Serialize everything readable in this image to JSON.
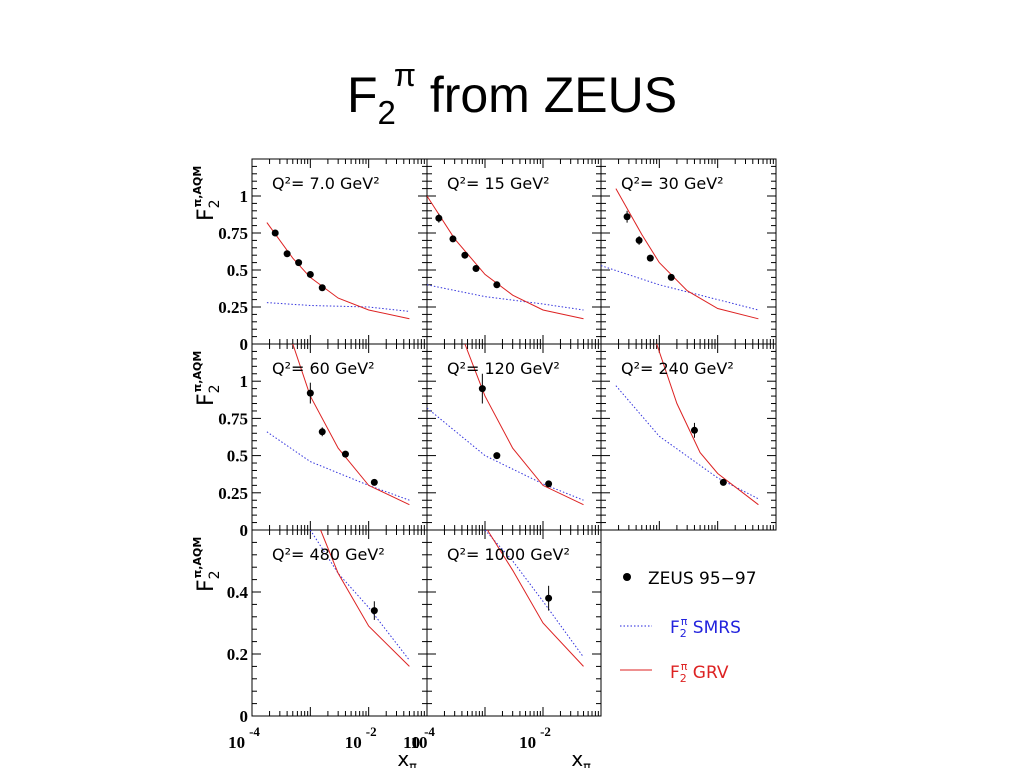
{
  "slide": {
    "title_base": "F",
    "title_sub": "2",
    "title_sup": "π",
    "title_rest": " from ZEUS"
  },
  "chart_data": {
    "type": "scatter",
    "x_scale": "log",
    "y_axis_label": {
      "base": "F",
      "sub": "2",
      "sup": "π,AQM"
    },
    "x_axis_label": {
      "base": "x",
      "sub": "π"
    },
    "x_tick_labels": [
      {
        "base": "10",
        "exp": "-4"
      },
      {
        "base": "10",
        "exp": "-2"
      }
    ],
    "legend": [
      {
        "key": "zeus",
        "label": "ZEUS 95−97",
        "color": "#000000"
      },
      {
        "key": "smrs",
        "prefix": "F",
        "sub": "2",
        "sup": "π",
        "label": " SMRS",
        "color": "#2222dd"
      },
      {
        "key": "grv",
        "prefix": "F",
        "sub": "2",
        "sup": "π",
        "label": " GRV",
        "color": "#dd2222"
      }
    ],
    "panels": [
      {
        "label": "Q²= 7.0 GeV²",
        "xlim_exp": [
          -4,
          -1
        ],
        "ylim": [
          0,
          1.25
        ],
        "yticks": [
          "0",
          "0.25",
          "0.5",
          "0.75",
          "1"
        ],
        "ytick_values": [
          0,
          0.25,
          0.5,
          0.75,
          1
        ],
        "zeus": [
          [
            0.00025,
            0.75,
            0.02
          ],
          [
            0.0004,
            0.61,
            0.02
          ],
          [
            0.00063,
            0.55,
            0.02
          ],
          [
            0.001,
            0.47,
            0.02
          ],
          [
            0.0016,
            0.38,
            0.02
          ]
        ],
        "smrs": [
          [
            0.00018,
            0.28
          ],
          [
            0.001,
            0.26
          ],
          [
            0.01,
            0.25
          ],
          [
            0.05,
            0.22
          ]
        ],
        "grv": [
          [
            0.00018,
            0.82
          ],
          [
            0.0005,
            0.58
          ],
          [
            0.001,
            0.45
          ],
          [
            0.003,
            0.31
          ],
          [
            0.01,
            0.23
          ],
          [
            0.05,
            0.17
          ]
        ]
      },
      {
        "label": "Q²= 15 GeV²",
        "xlim_exp": [
          -4,
          -1
        ],
        "ylim": [
          0,
          1.25
        ],
        "yticks": [],
        "ytick_values": [
          0,
          0.25,
          0.5,
          0.75,
          1
        ],
        "zeus": [
          [
            0.00016,
            0.85,
            0.03
          ],
          [
            0.00028,
            0.71,
            0.02
          ],
          [
            0.00045,
            0.6,
            0.02
          ],
          [
            0.0007,
            0.51,
            0.02
          ],
          [
            0.0016,
            0.4,
            0.02
          ]
        ],
        "smrs": [
          [
            0.0001,
            0.4
          ],
          [
            0.001,
            0.32
          ],
          [
            0.01,
            0.27
          ],
          [
            0.05,
            0.23
          ]
        ],
        "grv": [
          [
            0.0001,
            1.0
          ],
          [
            0.0003,
            0.71
          ],
          [
            0.001,
            0.47
          ],
          [
            0.003,
            0.33
          ],
          [
            0.01,
            0.23
          ],
          [
            0.05,
            0.17
          ]
        ]
      },
      {
        "label": "Q²= 30 GeV²",
        "xlim_exp": [
          -4,
          -1
        ],
        "ylim": [
          0,
          1.25
        ],
        "yticks": [],
        "ytick_values": [
          0,
          0.25,
          0.5,
          0.75,
          1
        ],
        "zeus": [
          [
            0.00028,
            0.86,
            0.04
          ],
          [
            0.00045,
            0.7,
            0.03
          ],
          [
            0.0007,
            0.58,
            0.02
          ],
          [
            0.0016,
            0.45,
            0.02
          ]
        ],
        "smrs": [
          [
            0.0001,
            0.53
          ],
          [
            0.001,
            0.4
          ],
          [
            0.01,
            0.3
          ],
          [
            0.05,
            0.23
          ]
        ],
        "grv": [
          [
            0.00018,
            1.05
          ],
          [
            0.0005,
            0.74
          ],
          [
            0.001,
            0.55
          ],
          [
            0.003,
            0.36
          ],
          [
            0.01,
            0.24
          ],
          [
            0.05,
            0.17
          ]
        ]
      },
      {
        "label": "Q²= 60 GeV²",
        "xlim_exp": [
          -4,
          -1
        ],
        "ylim": [
          0,
          1.25
        ],
        "yticks": [
          "0",
          "0.25",
          "0.5",
          "0.75",
          "1"
        ],
        "ytick_values": [
          0,
          0.25,
          0.5,
          0.75,
          1
        ],
        "zeus": [
          [
            0.001,
            0.92,
            0.07
          ],
          [
            0.0016,
            0.66,
            0.03
          ],
          [
            0.004,
            0.51,
            0.02
          ],
          [
            0.0125,
            0.32,
            0.02
          ]
        ],
        "smrs": [
          [
            0.00018,
            0.66
          ],
          [
            0.001,
            0.46
          ],
          [
            0.01,
            0.3
          ],
          [
            0.05,
            0.2
          ]
        ],
        "grv": [
          [
            0.0005,
            1.25
          ],
          [
            0.001,
            0.9
          ],
          [
            0.003,
            0.55
          ],
          [
            0.01,
            0.3
          ],
          [
            0.05,
            0.17
          ]
        ]
      },
      {
        "label": "Q²= 120 GeV²",
        "xlim_exp": [
          -4,
          -1
        ],
        "ylim": [
          0,
          1.25
        ],
        "yticks": [],
        "ytick_values": [
          0,
          0.25,
          0.5,
          0.75,
          1
        ],
        "zeus": [
          [
            0.0009,
            0.95,
            0.1
          ],
          [
            0.0016,
            0.5,
            0.02
          ],
          [
            0.0125,
            0.31,
            0.02
          ]
        ],
        "smrs": [
          [
            0.0001,
            0.82
          ],
          [
            0.001,
            0.5
          ],
          [
            0.01,
            0.31
          ],
          [
            0.05,
            0.2
          ]
        ],
        "grv": [
          [
            0.00045,
            1.25
          ],
          [
            0.001,
            0.9
          ],
          [
            0.003,
            0.55
          ],
          [
            0.01,
            0.3
          ],
          [
            0.05,
            0.17
          ]
        ]
      },
      {
        "label": "Q²= 240 GeV²",
        "xlim_exp": [
          -4,
          -1
        ],
        "ylim": [
          0,
          1.25
        ],
        "yticks": [],
        "ytick_values": [
          0,
          0.25,
          0.5,
          0.75,
          1
        ],
        "zeus": [
          [
            0.004,
            0.67,
            0.05
          ],
          [
            0.0125,
            0.32,
            0.02
          ]
        ],
        "smrs": [
          [
            0.00018,
            0.97
          ],
          [
            0.001,
            0.63
          ],
          [
            0.01,
            0.35
          ],
          [
            0.05,
            0.21
          ]
        ],
        "grv": [
          [
            0.0009,
            1.25
          ],
          [
            0.002,
            0.85
          ],
          [
            0.005,
            0.52
          ],
          [
            0.01,
            0.38
          ],
          [
            0.05,
            0.17
          ]
        ]
      },
      {
        "label": "Q²= 480 GeV²",
        "xlim_exp": [
          -4,
          -1
        ],
        "ylim": [
          0,
          0.6
        ],
        "yticks": [
          "0",
          "0.2",
          "0.4"
        ],
        "ytick_values": [
          0,
          0.2,
          0.4
        ],
        "zeus": [
          [
            0.0125,
            0.34,
            0.03
          ]
        ],
        "smrs": [
          [
            0.001,
            0.6
          ],
          [
            0.003,
            0.46
          ],
          [
            0.01,
            0.35
          ],
          [
            0.05,
            0.18
          ]
        ],
        "grv": [
          [
            0.0015,
            0.6
          ],
          [
            0.003,
            0.46
          ],
          [
            0.01,
            0.29
          ],
          [
            0.05,
            0.16
          ]
        ]
      },
      {
        "label": "Q²= 1000 GeV²",
        "xlim_exp": [
          -4,
          -1
        ],
        "ylim": [
          0,
          0.6
        ],
        "yticks": [],
        "ytick_values": [
          0,
          0.2,
          0.4
        ],
        "zeus": [
          [
            0.0125,
            0.38,
            0.04
          ]
        ],
        "smrs": [
          [
            0.001,
            0.6
          ],
          [
            0.003,
            0.5
          ],
          [
            0.01,
            0.37
          ],
          [
            0.05,
            0.19
          ]
        ],
        "grv": [
          [
            0.0011,
            0.6
          ],
          [
            0.003,
            0.47
          ],
          [
            0.01,
            0.3
          ],
          [
            0.05,
            0.16
          ]
        ]
      }
    ]
  }
}
